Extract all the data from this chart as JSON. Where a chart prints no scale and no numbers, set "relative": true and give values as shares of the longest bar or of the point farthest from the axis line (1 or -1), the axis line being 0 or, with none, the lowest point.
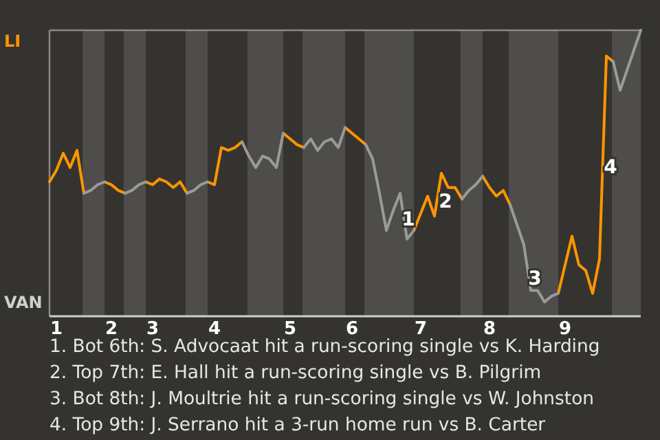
{
  "chart_data": {
    "type": "line",
    "relative": true,
    "categories": [
      null,
      "1",
      null,
      null,
      null,
      null,
      null,
      null,
      null,
      "2",
      null,
      null,
      null,
      null,
      null,
      "3",
      null,
      null,
      null,
      null,
      null,
      null,
      null,
      null,
      "4",
      null,
      null,
      null,
      null,
      null,
      null,
      null,
      null,
      null,
      null,
      "5",
      null,
      null,
      null,
      null,
      null,
      null,
      null,
      null,
      "6",
      null,
      null,
      null,
      null,
      null,
      null,
      null,
      null,
      null,
      "7",
      null,
      null,
      null,
      null,
      null,
      null,
      null,
      null,
      null,
      "8",
      null,
      null,
      null,
      null,
      null,
      null,
      null,
      null,
      null,
      null,
      "9",
      null,
      null,
      null,
      null,
      null,
      null,
      null,
      null,
      null,
      null,
      null
    ],
    "series": [
      {
        "color": "#ff9500",
        "values": [
          0.47,
          0.51,
          0.57,
          0.52,
          0.58,
          0.43,
          null,
          null,
          0.47,
          0.46,
          0.44,
          0.43,
          null,
          null,
          0.47,
          0.46,
          0.48,
          0.47,
          0.45,
          0.47,
          0.43,
          null,
          null,
          0.47,
          0.46,
          0.59,
          0.58,
          0.59,
          0.61,
          null,
          null,
          null,
          null,
          null,
          0.64,
          0.62,
          0.6,
          0.59,
          null,
          null,
          null,
          null,
          null,
          0.66,
          0.64,
          0.62,
          0.6,
          null,
          null,
          null,
          null,
          null,
          null,
          0.3,
          0.36,
          0.42,
          0.35,
          0.5,
          0.45,
          0.45,
          0.41,
          null,
          null,
          0.49,
          0.45,
          0.42,
          0.44,
          0.39,
          null,
          null,
          null,
          null,
          null,
          null,
          0.08,
          0.18,
          0.28,
          0.18,
          0.16,
          0.08,
          0.2,
          0.91,
          0.89,
          null,
          null,
          null,
          null
        ]
      },
      {
        "color": "#9a9a98",
        "values": [
          null,
          null,
          null,
          null,
          null,
          0.43,
          0.44,
          0.46,
          0.47,
          null,
          null,
          0.43,
          0.44,
          0.46,
          0.47,
          null,
          null,
          null,
          null,
          null,
          0.43,
          0.44,
          0.46,
          0.47,
          null,
          null,
          null,
          null,
          0.61,
          0.56,
          0.52,
          0.56,
          0.55,
          0.52,
          0.64,
          null,
          null,
          0.59,
          0.62,
          0.58,
          0.61,
          0.62,
          0.59,
          0.66,
          null,
          null,
          0.6,
          0.55,
          0.43,
          0.3,
          0.37,
          0.43,
          0.27,
          0.3,
          null,
          null,
          null,
          null,
          null,
          null,
          0.41,
          0.44,
          0.46,
          0.49,
          null,
          null,
          null,
          0.39,
          0.32,
          0.25,
          0.09,
          0.09,
          0.05,
          0.07,
          0.08,
          null,
          null,
          null,
          null,
          null,
          null,
          null,
          0.89,
          0.79,
          0.86,
          0.93,
          1.0
        ]
      }
    ],
    "annotations": [
      "1",
      "2",
      "3",
      "4",
      "LI",
      "VAN",
      "1. Bot 6th: S. Advocaat hit a run-scoring single vs K. Harding",
      "2. Top 7th: E. Hall hit a run-scoring single vs B. Pilgrim",
      "3. Bot 8th: J. Moultrie hit a run-scoring single vs W. Johnston",
      "4. Top 9th: J. Serrano hit a 3-run home run vs B. Carter"
    ]
  }
}
